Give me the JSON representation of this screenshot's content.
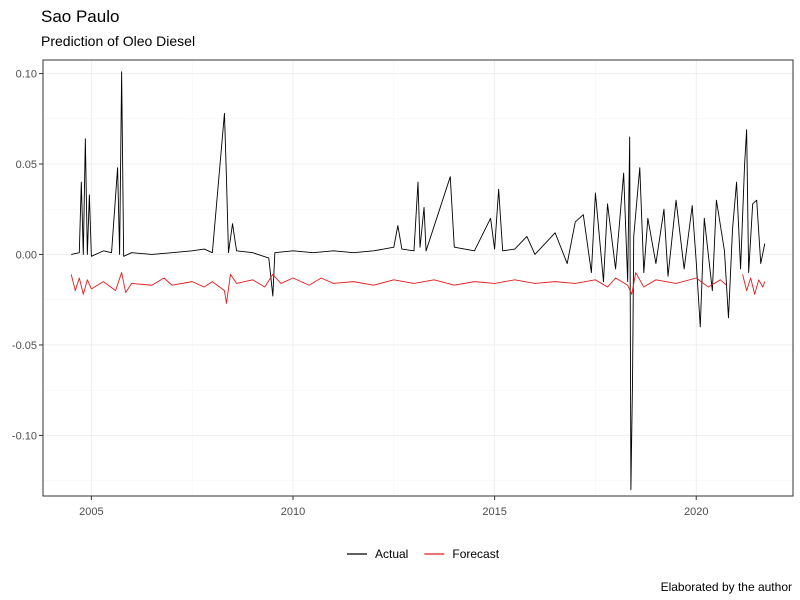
{
  "chart_data": {
    "type": "line",
    "title": "Sao Paulo",
    "subtitle": "Prediction of Oleo Diesel",
    "caption": "Elaborated by the author",
    "xlabel": "",
    "ylabel": "",
    "xlim": [
      2003.8,
      2022.4
    ],
    "ylim": [
      -0.1335,
      0.1075
    ],
    "x_ticks": [
      2005,
      2010,
      2015,
      2020
    ],
    "y_ticks": [
      0.1,
      0.05,
      0.0,
      -0.05,
      -0.1
    ],
    "y_tick_labels": [
      "0.10",
      "0.05",
      "0.00",
      "-0.05",
      "-0.10"
    ],
    "grid": true,
    "legend_position": "bottom",
    "series": [
      {
        "name": "Actual",
        "color": "#000000",
        "points": [
          [
            2004.5,
            0.0
          ],
          [
            2004.7,
            0.001
          ],
          [
            2004.75,
            0.04
          ],
          [
            2004.8,
            0.0
          ],
          [
            2004.85,
            0.064
          ],
          [
            2004.9,
            0.0
          ],
          [
            2004.95,
            0.033
          ],
          [
            2005.0,
            -0.001
          ],
          [
            2005.3,
            0.002
          ],
          [
            2005.5,
            0.001
          ],
          [
            2005.65,
            0.048
          ],
          [
            2005.7,
            0.0
          ],
          [
            2005.75,
            0.101
          ],
          [
            2005.8,
            -0.001
          ],
          [
            2006.0,
            0.001
          ],
          [
            2006.5,
            0.0
          ],
          [
            2007.0,
            0.001
          ],
          [
            2007.5,
            0.002
          ],
          [
            2007.8,
            0.003
          ],
          [
            2008.0,
            0.001
          ],
          [
            2008.3,
            0.078
          ],
          [
            2008.35,
            0.042
          ],
          [
            2008.4,
            0.001
          ],
          [
            2008.5,
            0.017
          ],
          [
            2008.6,
            0.002
          ],
          [
            2009.0,
            0.001
          ],
          [
            2009.4,
            -0.002
          ],
          [
            2009.5,
            -0.023
          ],
          [
            2009.55,
            0.001
          ],
          [
            2010.0,
            0.002
          ],
          [
            2010.5,
            0.001
          ],
          [
            2011.0,
            0.002
          ],
          [
            2011.5,
            0.001
          ],
          [
            2012.0,
            0.002
          ],
          [
            2012.5,
            0.004
          ],
          [
            2012.6,
            0.016
          ],
          [
            2012.7,
            0.003
          ],
          [
            2013.0,
            0.002
          ],
          [
            2013.1,
            0.04
          ],
          [
            2013.15,
            0.004
          ],
          [
            2013.25,
            0.026
          ],
          [
            2013.3,
            0.002
          ],
          [
            2013.9,
            0.043
          ],
          [
            2014.0,
            0.004
          ],
          [
            2014.5,
            0.002
          ],
          [
            2014.9,
            0.02
          ],
          [
            2015.0,
            0.003
          ],
          [
            2015.1,
            0.036
          ],
          [
            2015.2,
            0.002
          ],
          [
            2015.5,
            0.003
          ],
          [
            2015.8,
            0.01
          ],
          [
            2016.0,
            0.0
          ],
          [
            2016.5,
            0.012
          ],
          [
            2016.8,
            -0.005
          ],
          [
            2017.0,
            0.018
          ],
          [
            2017.2,
            0.022
          ],
          [
            2017.4,
            -0.01
          ],
          [
            2017.5,
            0.034
          ],
          [
            2017.7,
            -0.015
          ],
          [
            2017.8,
            0.028
          ],
          [
            2018.0,
            -0.008
          ],
          [
            2018.1,
            0.018
          ],
          [
            2018.2,
            0.045
          ],
          [
            2018.3,
            -0.015
          ],
          [
            2018.35,
            0.065
          ],
          [
            2018.38,
            -0.13
          ],
          [
            2018.42,
            -0.07
          ],
          [
            2018.45,
            0.01
          ],
          [
            2018.6,
            0.048
          ],
          [
            2018.7,
            -0.01
          ],
          [
            2018.8,
            0.02
          ],
          [
            2019.0,
            -0.005
          ],
          [
            2019.2,
            0.025
          ],
          [
            2019.3,
            -0.012
          ],
          [
            2019.5,
            0.03
          ],
          [
            2019.7,
            -0.008
          ],
          [
            2019.9,
            0.027
          ],
          [
            2020.0,
            -0.004
          ],
          [
            2020.1,
            -0.04
          ],
          [
            2020.2,
            0.02
          ],
          [
            2020.4,
            -0.02
          ],
          [
            2020.5,
            0.03
          ],
          [
            2020.7,
            0.002
          ],
          [
            2020.8,
            -0.035
          ],
          [
            2020.9,
            0.014
          ],
          [
            2021.0,
            0.04
          ],
          [
            2021.1,
            -0.008
          ],
          [
            2021.2,
            0.05
          ],
          [
            2021.25,
            0.069
          ],
          [
            2021.3,
            -0.01
          ],
          [
            2021.4,
            0.028
          ],
          [
            2021.5,
            0.03
          ],
          [
            2021.6,
            -0.005
          ],
          [
            2021.7,
            0.006
          ]
        ]
      },
      {
        "name": "Forecast",
        "color": "#e41a1c",
        "points": [
          [
            2004.5,
            -0.011
          ],
          [
            2004.6,
            -0.02
          ],
          [
            2004.7,
            -0.013
          ],
          [
            2004.8,
            -0.022
          ],
          [
            2004.9,
            -0.014
          ],
          [
            2005.0,
            -0.019
          ],
          [
            2005.3,
            -0.015
          ],
          [
            2005.6,
            -0.02
          ],
          [
            2005.75,
            -0.01
          ],
          [
            2005.85,
            -0.021
          ],
          [
            2006.0,
            -0.016
          ],
          [
            2006.5,
            -0.017
          ],
          [
            2006.8,
            -0.013
          ],
          [
            2007.0,
            -0.017
          ],
          [
            2007.5,
            -0.015
          ],
          [
            2007.8,
            -0.018
          ],
          [
            2008.0,
            -0.015
          ],
          [
            2008.3,
            -0.02
          ],
          [
            2008.35,
            -0.027
          ],
          [
            2008.45,
            -0.011
          ],
          [
            2008.6,
            -0.016
          ],
          [
            2009.0,
            -0.014
          ],
          [
            2009.3,
            -0.018
          ],
          [
            2009.5,
            -0.011
          ],
          [
            2009.7,
            -0.016
          ],
          [
            2010.0,
            -0.013
          ],
          [
            2010.4,
            -0.017
          ],
          [
            2010.7,
            -0.013
          ],
          [
            2011.0,
            -0.016
          ],
          [
            2011.5,
            -0.015
          ],
          [
            2012.0,
            -0.017
          ],
          [
            2012.5,
            -0.014
          ],
          [
            2013.0,
            -0.016
          ],
          [
            2013.5,
            -0.014
          ],
          [
            2014.0,
            -0.017
          ],
          [
            2014.5,
            -0.015
          ],
          [
            2015.0,
            -0.016
          ],
          [
            2015.5,
            -0.014
          ],
          [
            2016.0,
            -0.016
          ],
          [
            2016.5,
            -0.015
          ],
          [
            2017.0,
            -0.016
          ],
          [
            2017.5,
            -0.014
          ],
          [
            2017.8,
            -0.018
          ],
          [
            2018.0,
            -0.013
          ],
          [
            2018.3,
            -0.017
          ],
          [
            2018.4,
            -0.022
          ],
          [
            2018.5,
            -0.01
          ],
          [
            2018.7,
            -0.018
          ],
          [
            2019.0,
            -0.014
          ],
          [
            2019.5,
            -0.016
          ],
          [
            2020.0,
            -0.013
          ],
          [
            2020.3,
            -0.018
          ],
          [
            2020.6,
            -0.014
          ],
          [
            2020.75,
            -0.017
          ]
        ]
      },
      {
        "name": "",
        "color": "#e41a1c",
        "points": [
          [
            2021.15,
            -0.011
          ],
          [
            2021.25,
            -0.02
          ],
          [
            2021.35,
            -0.013
          ],
          [
            2021.45,
            -0.022
          ],
          [
            2021.55,
            -0.014
          ],
          [
            2021.65,
            -0.018
          ],
          [
            2021.7,
            -0.015
          ]
        ]
      }
    ]
  }
}
